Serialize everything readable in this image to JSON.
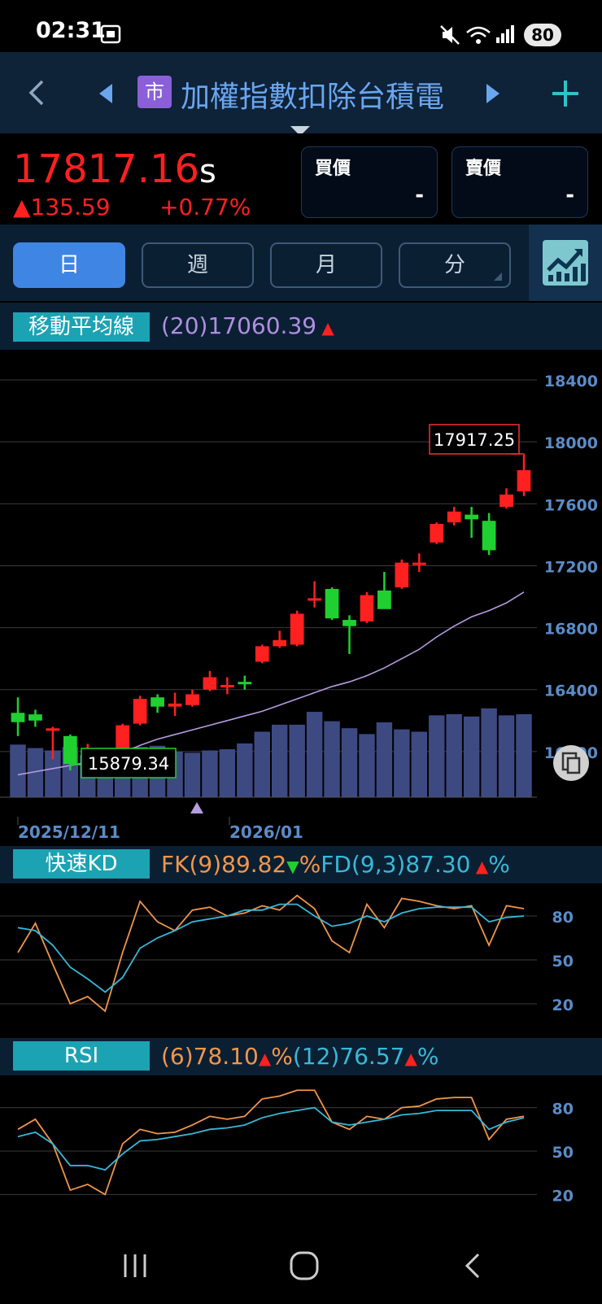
{
  "status_bar": {
    "time": "02:31",
    "battery": "80"
  },
  "header": {
    "market_badge": "市",
    "title": "加權指數扣除台積電"
  },
  "quote": {
    "price": "17817.16",
    "price_suffix": "s",
    "change": "135.59",
    "change_pct": "+0.77%",
    "bid_label": "買價",
    "bid_value": "-",
    "ask_label": "賣價",
    "ask_value": "-"
  },
  "periods": [
    {
      "label": "日",
      "active": true
    },
    {
      "label": "週",
      "active": false
    },
    {
      "label": "月",
      "active": false
    },
    {
      "label": "分",
      "active": false
    }
  ],
  "ma": {
    "label": "移動平均線",
    "value": "(20)17060.39"
  },
  "kd": {
    "label": "快速KD",
    "fk": "FK(9)89.82",
    "fd": "FD(9,3)87.30",
    "unit": "%"
  },
  "rsi": {
    "label": "RSI",
    "r6": "(6)78.10",
    "r12": "(12)76.57",
    "unit": "%"
  },
  "colors": {
    "up": "#ff2020",
    "down": "#20d030",
    "ma": "#b69ce0",
    "volume": "#3d4a82",
    "fk": "#f0964a",
    "fd": "#38b8d8"
  },
  "chart_data": [
    {
      "type": "candlestick",
      "ylim": [
        15600,
        18500
      ],
      "yticks": [
        18400,
        18000,
        17600,
        17200,
        16800,
        16400,
        16000
      ],
      "x_labels": [
        "2025/12/11",
        "2026/01"
      ],
      "annotations": {
        "high": "17917.25",
        "low": "15879.34"
      },
      "candles": [
        {
          "o": 16250,
          "h": 16350,
          "l": 16100,
          "c": 16190
        },
        {
          "o": 16240,
          "h": 16270,
          "l": 16160,
          "c": 16200
        },
        {
          "o": 16150,
          "h": 16160,
          "l": 15950,
          "c": 16150
        },
        {
          "o": 16100,
          "h": 16110,
          "l": 15879,
          "c": 15920
        },
        {
          "o": 15980,
          "h": 16050,
          "l": 15960,
          "c": 15990
        },
        {
          "o": 16000,
          "h": 16010,
          "l": 15920,
          "c": 15950
        },
        {
          "o": 15970,
          "h": 16180,
          "l": 15960,
          "c": 16170
        },
        {
          "o": 16180,
          "h": 16360,
          "l": 16170,
          "c": 16340
        },
        {
          "o": 16350,
          "h": 16370,
          "l": 16250,
          "c": 16290
        },
        {
          "o": 16290,
          "h": 16380,
          "l": 16230,
          "c": 16310
        },
        {
          "o": 16300,
          "h": 16400,
          "l": 16290,
          "c": 16370
        },
        {
          "o": 16400,
          "h": 16520,
          "l": 16390,
          "c": 16480
        },
        {
          "o": 16430,
          "h": 16480,
          "l": 16370,
          "c": 16430
        },
        {
          "o": 16450,
          "h": 16490,
          "l": 16400,
          "c": 16440
        },
        {
          "o": 16580,
          "h": 16690,
          "l": 16570,
          "c": 16680
        },
        {
          "o": 16680,
          "h": 16780,
          "l": 16670,
          "c": 16720
        },
        {
          "o": 16690,
          "h": 16910,
          "l": 16680,
          "c": 16890
        },
        {
          "o": 16990,
          "h": 17100,
          "l": 16930,
          "c": 16990
        },
        {
          "o": 17050,
          "h": 17060,
          "l": 16850,
          "c": 16860
        },
        {
          "o": 16850,
          "h": 16880,
          "l": 16630,
          "c": 16810
        },
        {
          "o": 16840,
          "h": 17030,
          "l": 16830,
          "c": 17010
        },
        {
          "o": 17040,
          "h": 17160,
          "l": 16930,
          "c": 16920
        },
        {
          "o": 17060,
          "h": 17240,
          "l": 17050,
          "c": 17220
        },
        {
          "o": 17210,
          "h": 17280,
          "l": 17160,
          "c": 17220
        },
        {
          "o": 17350,
          "h": 17480,
          "l": 17340,
          "c": 17470
        },
        {
          "o": 17480,
          "h": 17580,
          "l": 17460,
          "c": 17550
        },
        {
          "o": 17530,
          "h": 17580,
          "l": 17380,
          "c": 17500
        },
        {
          "o": 17490,
          "h": 17540,
          "l": 17270,
          "c": 17300
        },
        {
          "o": 17580,
          "h": 17700,
          "l": 17570,
          "c": 17660
        },
        {
          "o": 17680,
          "h": 17917,
          "l": 17650,
          "c": 17817
        }
      ],
      "ma20": [
        15850,
        15870,
        15890,
        15910,
        15930,
        15960,
        15990,
        16040,
        16080,
        16110,
        16140,
        16170,
        16200,
        16230,
        16260,
        16300,
        16340,
        16380,
        16420,
        16450,
        16490,
        16540,
        16600,
        16660,
        16740,
        16810,
        16870,
        16910,
        16960,
        17030
      ],
      "volume": [
        90,
        84,
        80,
        86,
        72,
        70,
        74,
        86,
        88,
        78,
        76,
        80,
        82,
        92,
        112,
        124,
        124,
        146,
        130,
        118,
        108,
        128,
        116,
        112,
        140,
        142,
        138,
        152,
        140,
        142
      ]
    },
    {
      "type": "line",
      "title": "快速KD",
      "ylim": [
        0,
        100
      ],
      "yticks": [
        80,
        50,
        20
      ],
      "series": [
        {
          "name": "FK(9)",
          "values": [
            55,
            75,
            47,
            20,
            25,
            15,
            55,
            90,
            76,
            70,
            84,
            86,
            80,
            82,
            87,
            84,
            94,
            85,
            63,
            55,
            88,
            72,
            92,
            90,
            87,
            85,
            87,
            60,
            87,
            85
          ]
        },
        {
          "name": "FD(9,3)",
          "values": [
            72,
            70,
            60,
            45,
            37,
            28,
            38,
            58,
            65,
            70,
            76,
            78,
            80,
            84,
            84,
            88,
            88,
            80,
            73,
            75,
            80,
            76,
            82,
            85,
            86,
            86,
            86,
            76,
            79,
            80
          ]
        }
      ]
    },
    {
      "type": "line",
      "title": "RSI",
      "ylim": [
        0,
        100
      ],
      "yticks": [
        80,
        50,
        20
      ],
      "series": [
        {
          "name": "(6)",
          "values": [
            65,
            72,
            55,
            23,
            27,
            20,
            55,
            65,
            62,
            63,
            68,
            74,
            72,
            74,
            86,
            88,
            92,
            92,
            70,
            65,
            74,
            72,
            80,
            81,
            86,
            87,
            87,
            58,
            72,
            74
          ]
        },
        {
          "name": "(12)",
          "values": [
            60,
            63,
            55,
            40,
            40,
            37,
            48,
            57,
            58,
            60,
            62,
            65,
            66,
            68,
            73,
            76,
            78,
            80,
            70,
            68,
            70,
            72,
            75,
            76,
            78,
            78,
            78,
            65,
            70,
            73
          ]
        }
      ]
    }
  ]
}
